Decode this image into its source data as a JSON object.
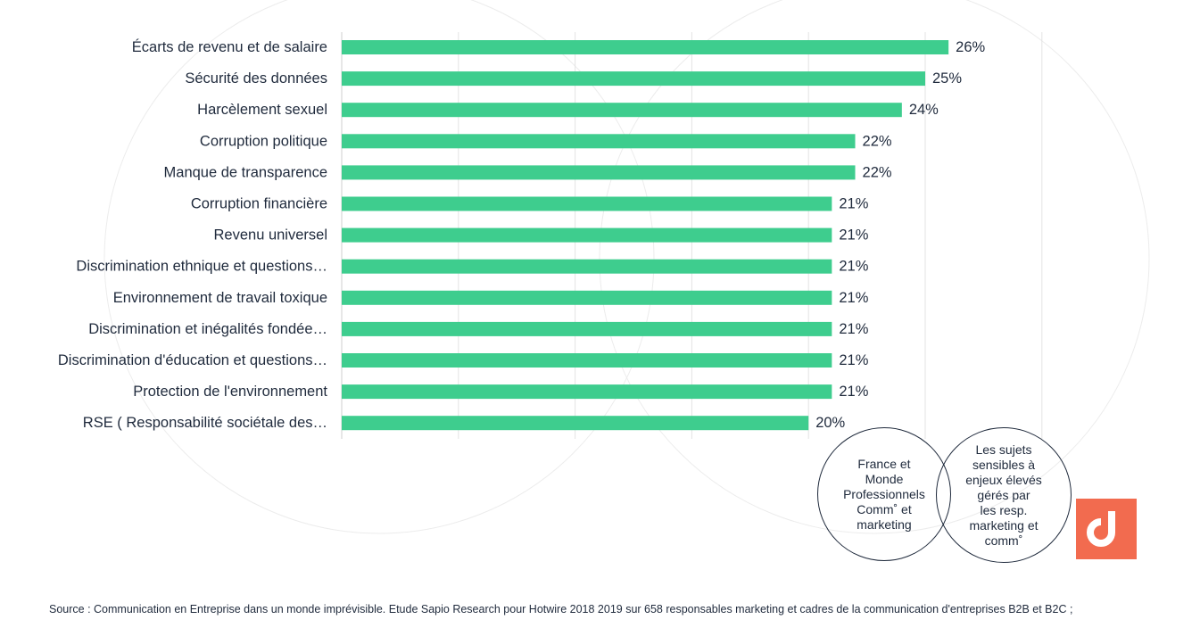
{
  "chart_data": {
    "type": "bar",
    "orientation": "horizontal",
    "categories": [
      "Écarts de revenu et de salaire",
      "Sécurité des données",
      "Harcèlement sexuel",
      "Corruption politique",
      "Manque de transparence",
      "Corruption financière",
      "Revenu universel",
      "Discrimination ethnique et questions…",
      "Environnement de travail toxique",
      "Discrimination et inégalités fondée…",
      "Discrimination d'éducation et questions…",
      "Protection de l'environnement",
      "RSE ( Responsabilité sociétale des…"
    ],
    "values": [
      26,
      25,
      24,
      22,
      22,
      21,
      21,
      21,
      21,
      21,
      21,
      21,
      20
    ],
    "value_labels": [
      "26%",
      "25%",
      "24%",
      "22%",
      "22%",
      "21%",
      "21%",
      "21%",
      "21%",
      "21%",
      "21%",
      "21%",
      "20%"
    ],
    "xlim": [
      0,
      30
    ],
    "grid": true,
    "bar_color": "#3ecd8e"
  },
  "annotations": {
    "circle_left": "France et\nMonde\nProfessionnels\nComm˚ et\nmarketing",
    "circle_right": "Les sujets\nsensibles à\nenjeux élevés\ngérés par\nles  resp.\nmarketing et\ncomm˚"
  },
  "logo_color": "#f26b4f",
  "source": "Source  : Communication en Entreprise dans un monde imprévisible. Etude Sapio Research pour Hotwire 2018 2019  sur 658 responsables marketing et cadres de la communication d'entreprises B2B et B2C ;"
}
